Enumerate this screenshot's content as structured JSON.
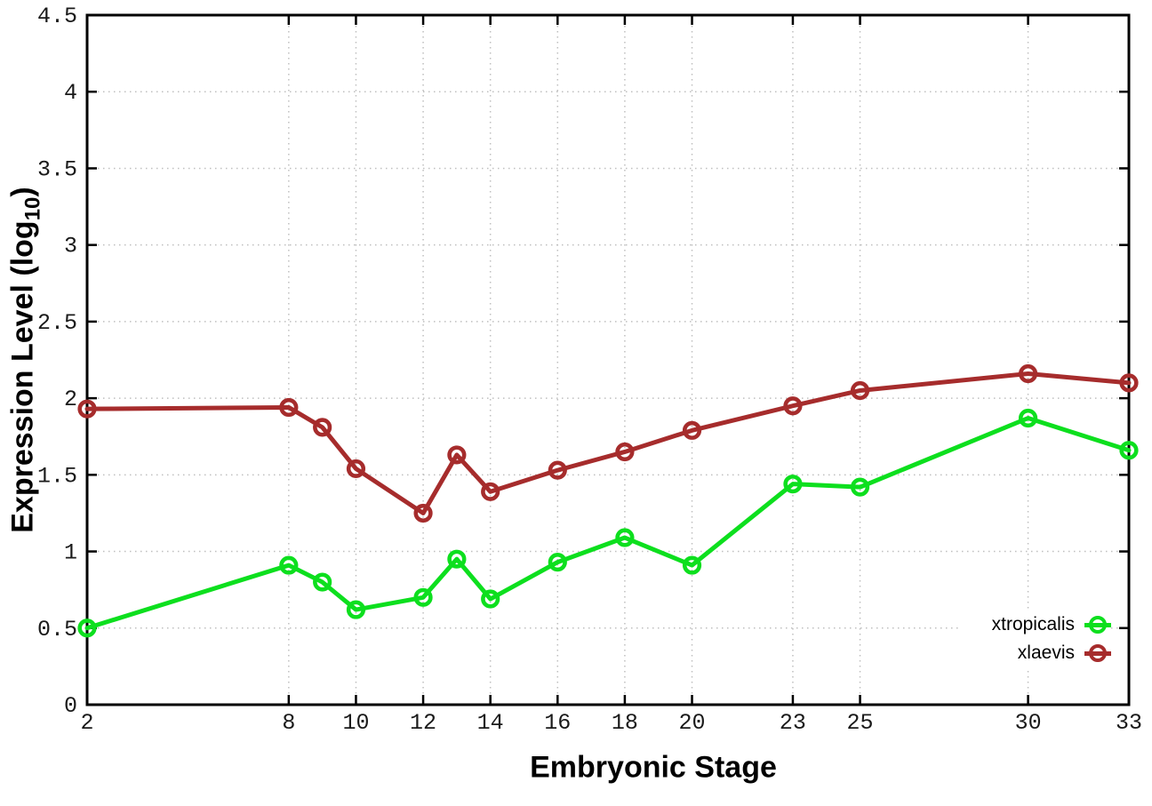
{
  "figure": {
    "background": "#ffffff",
    "xlabel": "Embryonic Stage",
    "ylabel_parts": {
      "prefix": "Expression Level (log",
      "sub": "10",
      "suffix": ")"
    }
  },
  "chart_data": {
    "type": "line",
    "title": "",
    "xlabel": "Embryonic Stage",
    "ylabel": "Expression Level (log10)",
    "x": [
      2,
      8,
      9,
      10,
      12,
      13,
      14,
      16,
      18,
      20,
      23,
      25,
      30,
      33
    ],
    "xlim": [
      2,
      33
    ],
    "ylim": [
      0,
      4.5
    ],
    "xtick_values": [
      2,
      8,
      10,
      12,
      14,
      16,
      18,
      20,
      23,
      25,
      30,
      33
    ],
    "xtick_labels": [
      "2",
      "8",
      "10",
      "12",
      "14",
      "16",
      "18",
      "20",
      "23",
      "25",
      "30",
      "33"
    ],
    "ytick_values": [
      0,
      0.5,
      1,
      1.5,
      2,
      2.5,
      3,
      3.5,
      4,
      4.5
    ],
    "ytick_labels": [
      "0",
      "0.5",
      "1",
      "1.5",
      "2",
      "2.5",
      "3",
      "3.5",
      "4",
      "4.5"
    ],
    "grid": true,
    "marker": "open-circle",
    "legend_position": "inside-bottom-right",
    "axis_color": "#000000",
    "grid_color": "#bfbfbf",
    "series": [
      {
        "name": "xtropicalis",
        "color": "#0ddf1e",
        "values": [
          0.5,
          0.91,
          0.8,
          0.62,
          0.7,
          0.95,
          0.69,
          0.93,
          1.09,
          0.91,
          1.44,
          1.42,
          1.87,
          1.66
        ]
      },
      {
        "name": "xlaevis",
        "color": "#a62c2c",
        "values": [
          1.93,
          1.94,
          1.81,
          1.54,
          1.25,
          1.63,
          1.39,
          1.53,
          1.65,
          1.79,
          1.95,
          2.05,
          2.16,
          2.1
        ]
      }
    ]
  }
}
